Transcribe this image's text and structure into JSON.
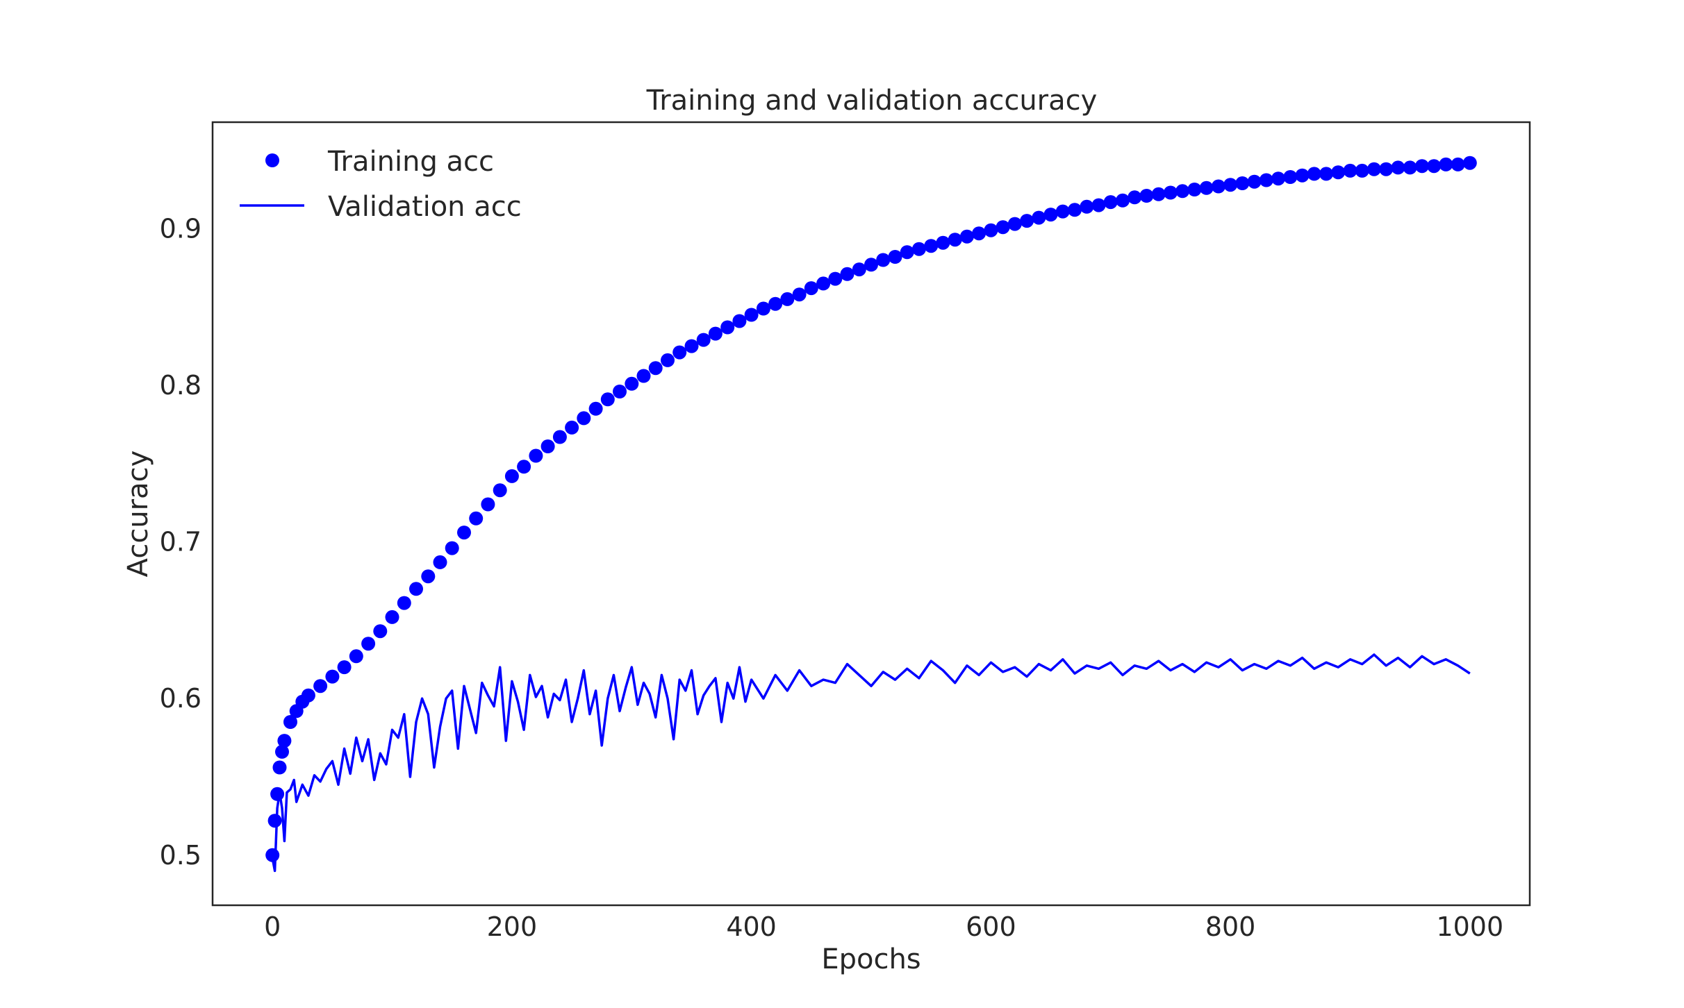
{
  "chart_data": {
    "type": "line",
    "title": "Training and validation accuracy",
    "xlabel": "Epochs",
    "ylabel": "Accuracy",
    "xlim": [
      -50,
      1050
    ],
    "ylim": [
      0.468,
      0.968
    ],
    "xticks": [
      0,
      200,
      400,
      600,
      800,
      1000
    ],
    "xtick_labels": [
      "0",
      "200",
      "400",
      "600",
      "800",
      "1000"
    ],
    "yticks": [
      0.5,
      0.6,
      0.7,
      0.8,
      0.9
    ],
    "ytick_labels": [
      "0.5",
      "0.6",
      "0.7",
      "0.8",
      "0.9"
    ],
    "grid": false,
    "legend_position": "top-left",
    "series": [
      {
        "name": "Training acc",
        "style": "markers",
        "color": "#0000ff",
        "x": [
          0,
          2,
          4,
          6,
          8,
          10,
          15,
          20,
          25,
          30,
          40,
          50,
          60,
          70,
          80,
          90,
          100,
          110,
          120,
          130,
          140,
          150,
          160,
          170,
          180,
          190,
          200,
          210,
          220,
          230,
          240,
          250,
          260,
          270,
          280,
          290,
          300,
          310,
          320,
          330,
          340,
          350,
          360,
          370,
          380,
          390,
          400,
          410,
          420,
          430,
          440,
          450,
          460,
          470,
          480,
          490,
          500,
          510,
          520,
          530,
          540,
          550,
          560,
          570,
          580,
          590,
          600,
          610,
          620,
          630,
          640,
          650,
          660,
          670,
          680,
          690,
          700,
          710,
          720,
          730,
          740,
          750,
          760,
          770,
          780,
          790,
          800,
          810,
          820,
          830,
          840,
          850,
          860,
          870,
          880,
          890,
          900,
          910,
          920,
          930,
          940,
          950,
          960,
          970,
          980,
          990,
          1000
        ],
        "y": [
          0.5,
          0.522,
          0.539,
          0.556,
          0.566,
          0.573,
          0.585,
          0.592,
          0.598,
          0.602,
          0.608,
          0.614,
          0.62,
          0.627,
          0.635,
          0.643,
          0.652,
          0.661,
          0.67,
          0.678,
          0.687,
          0.696,
          0.706,
          0.715,
          0.724,
          0.733,
          0.742,
          0.748,
          0.755,
          0.761,
          0.767,
          0.773,
          0.779,
          0.785,
          0.791,
          0.796,
          0.801,
          0.806,
          0.811,
          0.816,
          0.821,
          0.825,
          0.829,
          0.833,
          0.837,
          0.841,
          0.845,
          0.849,
          0.852,
          0.855,
          0.858,
          0.862,
          0.865,
          0.868,
          0.871,
          0.874,
          0.877,
          0.88,
          0.882,
          0.885,
          0.887,
          0.889,
          0.891,
          0.893,
          0.895,
          0.897,
          0.899,
          0.901,
          0.903,
          0.905,
          0.907,
          0.909,
          0.911,
          0.912,
          0.914,
          0.915,
          0.917,
          0.918,
          0.92,
          0.921,
          0.922,
          0.923,
          0.924,
          0.925,
          0.926,
          0.927,
          0.928,
          0.929,
          0.93,
          0.931,
          0.932,
          0.933,
          0.934,
          0.935,
          0.935,
          0.936,
          0.937,
          0.937,
          0.938,
          0.938,
          0.939,
          0.939,
          0.94,
          0.94,
          0.941,
          0.941,
          0.942
        ]
      },
      {
        "name": "Validation acc",
        "style": "line",
        "color": "#0000ff",
        "x": [
          0,
          2,
          4,
          6,
          8,
          10,
          12,
          15,
          18,
          20,
          25,
          30,
          35,
          40,
          45,
          50,
          55,
          60,
          65,
          70,
          75,
          80,
          85,
          90,
          95,
          100,
          105,
          110,
          115,
          120,
          125,
          130,
          135,
          140,
          145,
          150,
          155,
          160,
          165,
          170,
          175,
          180,
          185,
          190,
          195,
          200,
          205,
          210,
          215,
          220,
          225,
          230,
          235,
          240,
          245,
          250,
          255,
          260,
          265,
          270,
          275,
          280,
          285,
          290,
          295,
          300,
          305,
          310,
          315,
          320,
          325,
          330,
          335,
          340,
          345,
          350,
          355,
          360,
          365,
          370,
          375,
          380,
          385,
          390,
          395,
          400,
          410,
          420,
          430,
          440,
          450,
          460,
          470,
          480,
          490,
          500,
          510,
          520,
          530,
          540,
          550,
          560,
          570,
          580,
          590,
          600,
          610,
          620,
          630,
          640,
          650,
          660,
          670,
          680,
          690,
          700,
          710,
          720,
          730,
          740,
          750,
          760,
          770,
          780,
          790,
          800,
          810,
          820,
          830,
          840,
          850,
          860,
          870,
          880,
          890,
          900,
          910,
          920,
          930,
          940,
          950,
          960,
          970,
          980,
          990,
          1000
        ],
        "y": [
          0.498,
          0.49,
          0.53,
          0.54,
          0.53,
          0.509,
          0.54,
          0.542,
          0.548,
          0.534,
          0.545,
          0.538,
          0.551,
          0.547,
          0.555,
          0.56,
          0.545,
          0.568,
          0.552,
          0.575,
          0.56,
          0.574,
          0.548,
          0.565,
          0.558,
          0.58,
          0.575,
          0.59,
          0.55,
          0.585,
          0.6,
          0.59,
          0.556,
          0.582,
          0.6,
          0.605,
          0.568,
          0.608,
          0.593,
          0.578,
          0.61,
          0.602,
          0.595,
          0.62,
          0.573,
          0.611,
          0.598,
          0.58,
          0.615,
          0.601,
          0.608,
          0.588,
          0.603,
          0.599,
          0.612,
          0.585,
          0.6,
          0.618,
          0.59,
          0.605,
          0.57,
          0.6,
          0.615,
          0.592,
          0.607,
          0.62,
          0.596,
          0.61,
          0.603,
          0.588,
          0.615,
          0.6,
          0.574,
          0.612,
          0.605,
          0.618,
          0.59,
          0.602,
          0.608,
          0.613,
          0.585,
          0.61,
          0.6,
          0.62,
          0.598,
          0.612,
          0.6,
          0.615,
          0.605,
          0.618,
          0.608,
          0.612,
          0.61,
          0.622,
          0.615,
          0.608,
          0.617,
          0.612,
          0.619,
          0.613,
          0.624,
          0.618,
          0.61,
          0.621,
          0.615,
          0.623,
          0.617,
          0.62,
          0.614,
          0.622,
          0.618,
          0.625,
          0.616,
          0.621,
          0.619,
          0.623,
          0.615,
          0.621,
          0.619,
          0.624,
          0.618,
          0.622,
          0.617,
          0.623,
          0.62,
          0.625,
          0.618,
          0.622,
          0.619,
          0.624,
          0.621,
          0.626,
          0.619,
          0.623,
          0.62,
          0.625,
          0.622,
          0.628,
          0.621,
          0.626,
          0.62,
          0.627,
          0.622,
          0.625,
          0.621,
          0.616
        ]
      }
    ]
  }
}
